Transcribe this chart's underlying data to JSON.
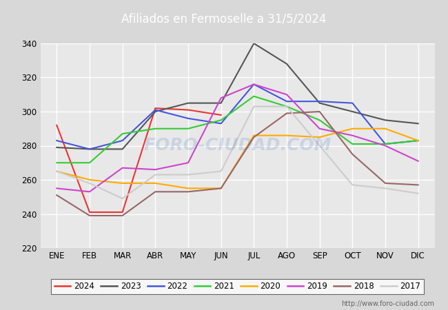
{
  "title": "Afiliados en Fermoselle a 31/5/2024",
  "title_color": "#ffffff",
  "title_bg": "#4472c4",
  "ylim": [
    220,
    340
  ],
  "yticks": [
    220,
    240,
    260,
    280,
    300,
    320,
    340
  ],
  "months": [
    "ENE",
    "FEB",
    "MAR",
    "ABR",
    "MAY",
    "JUN",
    "JUL",
    "AGO",
    "SEP",
    "OCT",
    "NOV",
    "DIC"
  ],
  "series": {
    "2024": {
      "color": "#ee3333",
      "data": [
        292,
        241,
        241,
        302,
        301,
        298,
        null,
        null,
        null,
        null,
        null,
        null
      ]
    },
    "2023": {
      "color": "#555555",
      "data": [
        279,
        278,
        278,
        300,
        305,
        305,
        340,
        328,
        305,
        300,
        295,
        293
      ]
    },
    "2022": {
      "color": "#4455dd",
      "data": [
        283,
        278,
        283,
        301,
        296,
        293,
        316,
        306,
        306,
        305,
        281,
        283
      ]
    },
    "2021": {
      "color": "#33cc33",
      "data": [
        270,
        270,
        287,
        290,
        290,
        295,
        309,
        303,
        295,
        281,
        281,
        283
      ]
    },
    "2020": {
      "color": "#ffaa00",
      "data": [
        265,
        260,
        258,
        258,
        255,
        255,
        286,
        286,
        285,
        290,
        290,
        283
      ]
    },
    "2019": {
      "color": "#cc44cc",
      "data": [
        255,
        253,
        267,
        266,
        270,
        308,
        316,
        310,
        290,
        286,
        280,
        271
      ]
    },
    "2018": {
      "color": "#996666",
      "data": [
        251,
        239,
        239,
        253,
        253,
        255,
        285,
        299,
        300,
        275,
        258,
        257
      ]
    },
    "2017": {
      "color": "#cccccc",
      "data": [
        265,
        258,
        249,
        263,
        263,
        265,
        303,
        303,
        null,
        257,
        255,
        252
      ]
    }
  },
  "watermark": "FORO-CIUDAD.COM",
  "url": "http://www.foro-ciudad.com",
  "bg_color": "#d8d8d8",
  "plot_bg": "#e8e8e8",
  "grid_color": "#ffffff"
}
